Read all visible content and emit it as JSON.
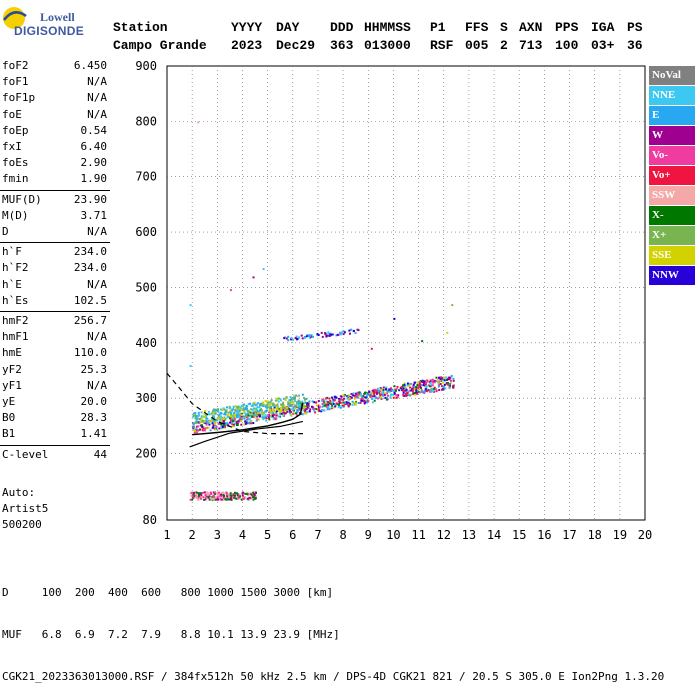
{
  "logo": {
    "line1": "Lowell",
    "line2": "DIGISONDE"
  },
  "header": {
    "labels": [
      "Station",
      "YYYY",
      "DAY",
      "DDD",
      "HHMMSS",
      "P1",
      "FFS",
      "S",
      "AXN",
      "PPS",
      "IGA",
      "PS"
    ],
    "values": [
      "Campo Grande",
      "2023",
      "Dec29",
      "363",
      "013000",
      "RSF",
      "005",
      "2",
      "713",
      "100",
      "03+",
      "36"
    ]
  },
  "params": [
    {
      "name": "foF2",
      "value": "6.450"
    },
    {
      "name": "foF1",
      "value": "N/A"
    },
    {
      "name": "foF1p",
      "value": "N/A"
    },
    {
      "name": "foE",
      "value": "N/A"
    },
    {
      "name": "foEp",
      "value": "0.54"
    },
    {
      "name": "fxI",
      "value": "6.40"
    },
    {
      "name": "foEs",
      "value": "2.90"
    },
    {
      "name": "fmin",
      "value": "1.90"
    },
    {
      "name": "MUF(D)",
      "value": "23.90"
    },
    {
      "name": "M(D)",
      "value": "3.71"
    },
    {
      "name": "D",
      "value": "N/A"
    },
    {
      "name": "h`F",
      "value": "234.0"
    },
    {
      "name": "h`F2",
      "value": "234.0"
    },
    {
      "name": "h`E",
      "value": "N/A"
    },
    {
      "name": "h`Es",
      "value": "102.5"
    },
    {
      "name": "hmF2",
      "value": "256.7"
    },
    {
      "name": "hmF1",
      "value": "N/A"
    },
    {
      "name": "hmE",
      "value": "110.0"
    },
    {
      "name": "yF2",
      "value": "25.3"
    },
    {
      "name": "yF1",
      "value": "N/A"
    },
    {
      "name": "yE",
      "value": "20.0"
    },
    {
      "name": "B0",
      "value": "28.3"
    },
    {
      "name": "B1",
      "value": "1.41"
    },
    {
      "name": "C-level",
      "value": "44"
    }
  ],
  "auto": {
    "line1": "Auto:",
    "line2": "Artist5",
    "line3": "500200"
  },
  "legend": [
    {
      "label": "NoVal",
      "color": "#808080",
      "text": "#ffffff"
    },
    {
      "label": "NNE",
      "color": "#3cc8f0",
      "text": "#ffffff"
    },
    {
      "label": "E",
      "color": "#28a8f0",
      "text": "#ffffff"
    },
    {
      "label": "W",
      "color": "#a00090",
      "text": "#ffffff"
    },
    {
      "label": "Vo-",
      "color": "#f03ca0",
      "text": "#ffffff"
    },
    {
      "label": "Vo+",
      "color": "#f01440",
      "text": "#ffffff"
    },
    {
      "label": "SSW",
      "color": "#f4a8a8",
      "text": "#ffffff"
    },
    {
      "label": "X-",
      "color": "#007800",
      "text": "#ffffff"
    },
    {
      "label": "X+",
      "color": "#78b450",
      "text": "#ffffff"
    },
    {
      "label": "SSE",
      "color": "#d2d200",
      "text": "#ffffff"
    },
    {
      "label": "NNW",
      "color": "#2800d8",
      "text": "#ffffff"
    }
  ],
  "footer": {
    "line1": "D     100  200  400  600   800 1000 1500 3000 [km]",
    "line2": "MUF   6.8  6.9  7.2  7.9   8.8 10.1 13.9 23.9 [MHz]",
    "line3": "CGK21_2023363013000.RSF / 384fx512h 50 kHz 2.5 km / DPS-4D CGK21 821 / 20.5 S 305.0 E Ion2Png 1.3.20"
  },
  "chart_data": {
    "type": "scatter",
    "xlim": [
      1,
      20
    ],
    "ylim": [
      80,
      900
    ],
    "x_ticks": [
      "1",
      "2",
      "3",
      "4",
      "5",
      "6",
      "7",
      "8",
      "9",
      "10",
      "11",
      "12",
      "13",
      "14",
      "15",
      "16",
      "17",
      "18",
      "19",
      "20"
    ],
    "y_ticks": [
      "80",
      "200",
      "300",
      "400",
      "500",
      "600",
      "700",
      "800",
      "900"
    ],
    "y_tick_values": [
      80,
      200,
      300,
      400,
      500,
      600,
      700,
      800,
      900
    ],
    "grid": "dotted",
    "clusters": [
      {
        "name": "F trace",
        "x_range": [
          2.0,
          12.4
        ],
        "y_start": [
          238,
          258
        ],
        "y_end": [
          320,
          345
        ],
        "colors": [
          "#f01440",
          "#a00090",
          "#007800",
          "#28a8f0",
          "#d2d200",
          "#f03ca0",
          "#3cc8f0",
          "#2800d8"
        ]
      },
      {
        "name": "F upper",
        "x_range": [
          2.0,
          6.5
        ],
        "y_start": [
          255,
          275
        ],
        "y_end": [
          285,
          310
        ],
        "colors": [
          "#3cc8f0",
          "#28a8f0",
          "#78b450",
          "#d2d200"
        ]
      },
      {
        "name": "Es",
        "x_range": [
          1.9,
          4.5
        ],
        "y_start": [
          118,
          132
        ],
        "y_end": [
          118,
          132
        ],
        "colors": [
          "#a00090",
          "#f03ca0",
          "#f4a8a8",
          "#007800"
        ]
      },
      {
        "name": "2F",
        "x_range": [
          5.6,
          8.7
        ],
        "y_start": [
          405,
          412
        ],
        "y_end": [
          420,
          428
        ],
        "colors": [
          "#28a8f0",
          "#2800d8",
          "#a00090",
          "#3cc8f0"
        ]
      }
    ],
    "profile_solid": [
      [
        2.0,
        234
      ],
      [
        3.0,
        238
      ],
      [
        4.0,
        243
      ],
      [
        5.0,
        250
      ],
      [
        5.6,
        256.7
      ],
      [
        6.0,
        262
      ],
      [
        6.3,
        271
      ],
      [
        6.4,
        292
      ]
    ],
    "profile_dashed": [
      [
        1.0,
        345
      ],
      [
        1.5,
        318
      ],
      [
        2.0,
        290
      ],
      [
        3.0,
        258
      ],
      [
        4.0,
        240
      ],
      [
        5.0,
        236
      ],
      [
        6.0,
        236
      ],
      [
        6.4,
        236
      ]
    ],
    "profile_low": [
      [
        1.9,
        212
      ],
      [
        2.5,
        222
      ],
      [
        3.5,
        237
      ],
      [
        4.5,
        244
      ],
      [
        5.5,
        249
      ],
      [
        6.4,
        258
      ]
    ]
  }
}
